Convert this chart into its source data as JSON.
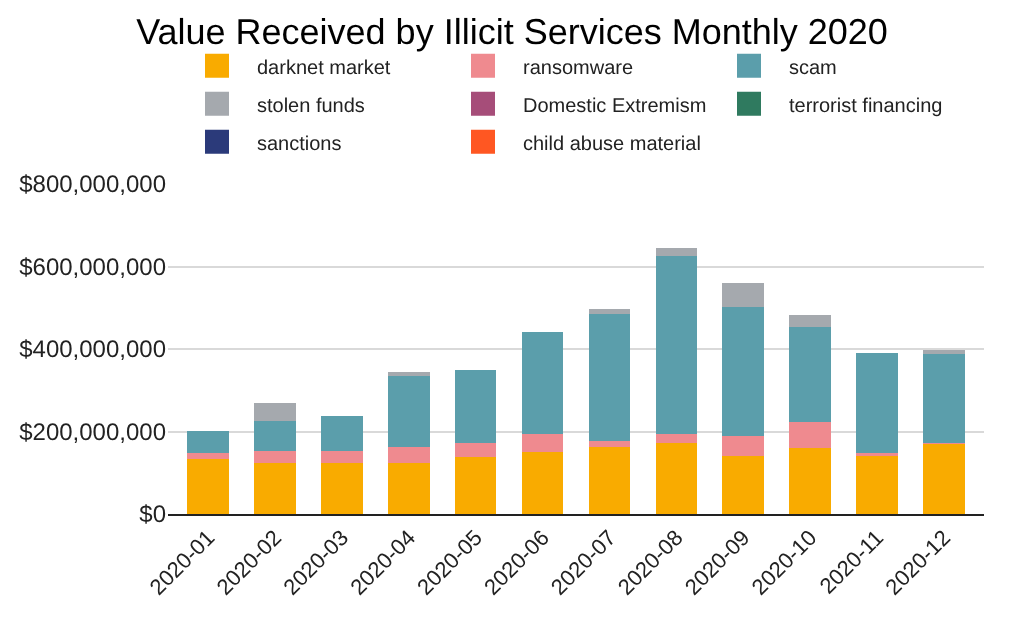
{
  "chart_data": {
    "type": "bar",
    "title": "Value Received by Illicit Services Monthly 2020",
    "stacked": true,
    "categories": [
      "2020-01",
      "2020-02",
      "2020-03",
      "2020-04",
      "2020-05",
      "2020-06",
      "2020-07",
      "2020-08",
      "2020-09",
      "2020-10",
      "2020-11",
      "2020-12"
    ],
    "series": [
      {
        "name": "darknet market",
        "color": "#f9ab00",
        "values": [
          133000000,
          123000000,
          123000000,
          123000000,
          138000000,
          151000000,
          162000000,
          172000000,
          141000000,
          160000000,
          145000000,
          170000000
        ]
      },
      {
        "name": "ransomware",
        "color": "#ef8a8f",
        "values": [
          15000000,
          30000000,
          30000000,
          40000000,
          35000000,
          44000000,
          16000000,
          23000000,
          49000000,
          64000000,
          3000000,
          2000000
        ]
      },
      {
        "name": "scam",
        "color": "#5b9eab",
        "values": [
          54000000,
          73000000,
          84000000,
          172000000,
          177000000,
          246000000,
          307000000,
          431000000,
          313000000,
          229000000,
          242000000,
          215000000
        ]
      },
      {
        "name": "stolen funds",
        "color": "#a5a9ae",
        "values": [
          0,
          43000000,
          0,
          5000000,
          0,
          0,
          13000000,
          19000000,
          56000000,
          30000000,
          0,
          10000000
        ]
      },
      {
        "name": "Domestic Extremism",
        "color": "#a64d79",
        "values": [
          0,
          0,
          0,
          0,
          0,
          0,
          0,
          0,
          0,
          0,
          0,
          0
        ]
      },
      {
        "name": "terrorist financing",
        "color": "#2f7a5f",
        "values": [
          0,
          0,
          0,
          0,
          0,
          0,
          0,
          0,
          0,
          0,
          0,
          0
        ]
      },
      {
        "name": "sanctions",
        "color": "#2b3a7a",
        "values": [
          0,
          0,
          0,
          0,
          0,
          0,
          0,
          0,
          0,
          0,
          0,
          0
        ]
      },
      {
        "name": "child abuse material",
        "color": "#ff5722",
        "values": [
          0,
          0,
          0,
          0,
          0,
          0,
          0,
          0,
          0,
          0,
          0,
          0
        ]
      }
    ],
    "ylim": [
      0,
      800000000
    ],
    "yticks": [
      {
        "value": 0,
        "label": "$0"
      },
      {
        "value": 200000000,
        "label": "$200,000,000"
      },
      {
        "value": 400000000,
        "label": "$400,000,000"
      },
      {
        "value": 600000000,
        "label": "$600,000,000"
      },
      {
        "value": 800000000,
        "label": "$800,000,000"
      }
    ],
    "grid": "y",
    "legend": "top"
  }
}
